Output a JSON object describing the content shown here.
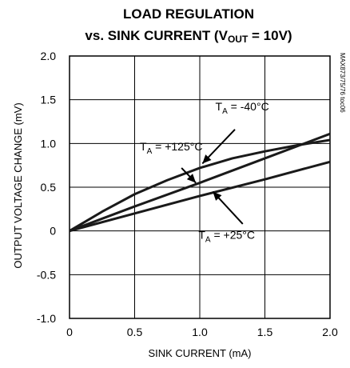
{
  "chart_data": {
    "type": "line",
    "title_line1": "LOAD REGULATION",
    "title_line2_prefix": "vs. SINK CURRENT (V",
    "title_line2_sub": "OUT",
    "title_line2_suffix": " = 10V)",
    "xlabel": "SINK CURRENT (mA)",
    "ylabel": "OUTPUT VOLTAGE CHANGE (mV)",
    "xlim": [
      0,
      2.0
    ],
    "ylim": [
      -1.0,
      2.0
    ],
    "x_ticks": [
      "0",
      "0.5",
      "1.0",
      "1.5",
      "2.0"
    ],
    "y_ticks": [
      "2.0",
      "1.5",
      "1.0",
      "0.5",
      "0",
      "-0.5",
      "-1.0"
    ],
    "grid": true,
    "code": "MAX873/75/76 toc06",
    "series": [
      {
        "name": "T_A = -40°C",
        "label_main": "T",
        "label_sub": "A",
        "label_rest": " = -40°C",
        "x": [
          0,
          0.25,
          0.5,
          0.75,
          1.0,
          1.25,
          1.5,
          1.75,
          2.0
        ],
        "y": [
          0,
          0.22,
          0.42,
          0.58,
          0.72,
          0.83,
          0.91,
          0.98,
          1.04
        ]
      },
      {
        "name": "T_A = +125°C",
        "label_main": "T",
        "label_sub": "A",
        "label_rest": " = +125°C",
        "x": [
          0,
          0.5,
          1.0,
          1.5,
          2.0
        ],
        "y": [
          0,
          0.28,
          0.55,
          0.83,
          1.11
        ]
      },
      {
        "name": "T_A = +25°C",
        "label_main": "T",
        "label_sub": "A",
        "label_rest": " = +25°C",
        "x": [
          0,
          0.5,
          1.0,
          1.5,
          2.0
        ],
        "y": [
          0,
          0.2,
          0.4,
          0.59,
          0.79
        ]
      }
    ]
  }
}
